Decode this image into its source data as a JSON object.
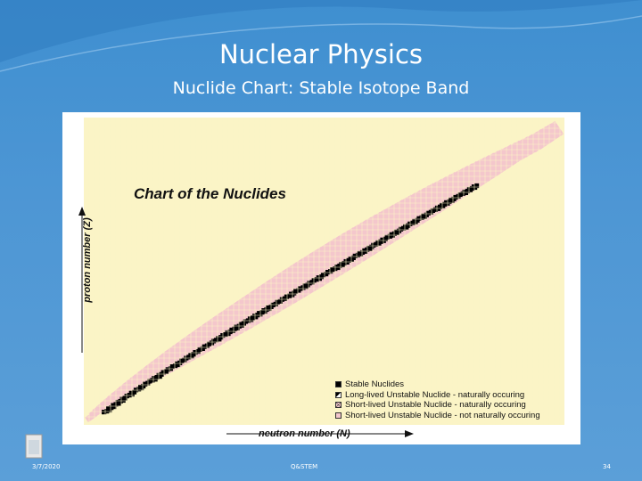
{
  "slide": {
    "title": "Nuclear Physics",
    "subtitle": "Nuclide Chart: Stable Isotope Band",
    "footer": {
      "date": "3/7/2020",
      "center": "Q&STEM",
      "page": "34"
    }
  },
  "figure": {
    "title": "Chart of the Nuclides",
    "ylabel": "proton number (Z)",
    "xlabel": "neutron number (N)",
    "legend": [
      {
        "label": "Stable Nuclides",
        "color": "#000000",
        "pattern": "solid"
      },
      {
        "label": "Long-lived Unstable Nuclide - naturally occuring",
        "color": "#000000",
        "pattern": "half"
      },
      {
        "label": "Short-lived Unstable Nuclide - naturally occuring",
        "color": "#f4c7cc",
        "pattern": "cross"
      },
      {
        "label": "Short-lived Unstable Nuclide - not naturally occuring",
        "color": "#f4c7cc",
        "pattern": "plain"
      }
    ],
    "colors": {
      "background": "#fbf4c6",
      "unstable": "#f4c7cc",
      "stable": "#000000"
    }
  }
}
